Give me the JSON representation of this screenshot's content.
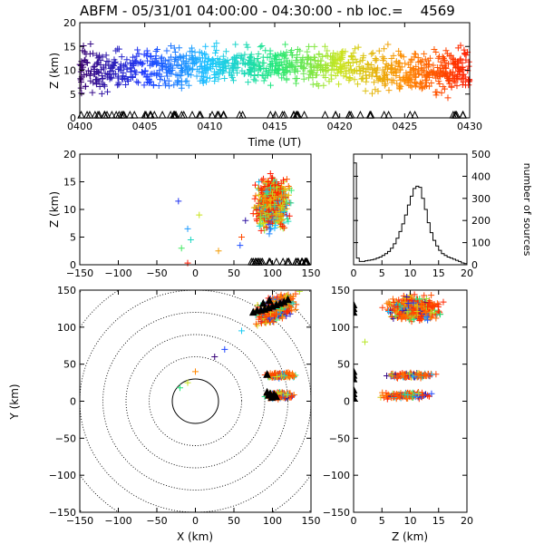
{
  "title": "ABFM - 05/31/01 04:00:00 - 04:30:00 - nb loc.=    4569",
  "colors": {
    "time_scale": [
      "#3b0070",
      "#1f3bff",
      "#1ec8ff",
      "#1ee87a",
      "#c8e61e",
      "#ff8a00",
      "#ff1a00"
    ],
    "station": "#000000",
    "histogram": "#000000"
  },
  "chart_data": [
    {
      "id": "time_height",
      "type": "scatter",
      "xlabel": "Time (UT)",
      "ylabel": "Z (km)",
      "xlim": [
        0,
        30
      ],
      "ylim": [
        0,
        20
      ],
      "x_ticks": [
        0,
        5,
        10,
        15,
        20,
        25,
        30
      ],
      "x_tick_labels": [
        "0400",
        "0405",
        "0410",
        "0415",
        "0420",
        "0425",
        "0430"
      ],
      "y_ticks": [
        0,
        5,
        10,
        15,
        20
      ],
      "y_tick_labels": [
        "0",
        "5",
        "10",
        "15",
        "20"
      ],
      "density_profile": [
        {
          "t": 0,
          "z_center": 10,
          "z_spread": 4.5
        },
        {
          "t": 5,
          "z_center": 10,
          "z_spread": 4
        },
        {
          "t": 10,
          "z_center": 11,
          "z_spread": 3.5
        },
        {
          "t": 15,
          "z_center": 11,
          "z_spread": 3.5
        },
        {
          "t": 20,
          "z_center": 11,
          "z_spread": 4
        },
        {
          "t": 25,
          "z_center": 10,
          "z_spread": 4.5
        },
        {
          "t": 30,
          "z_center": 10,
          "z_spread": 4.5
        }
      ],
      "grid": false
    },
    {
      "id": "x_height",
      "type": "scatter",
      "xlabel": "",
      "ylabel": "Z (km)",
      "xlim": [
        -150,
        150
      ],
      "ylim": [
        0,
        20
      ],
      "x_ticks": [
        -150,
        -100,
        -50,
        0,
        50,
        100,
        150
      ],
      "x_tick_labels": [
        "−150",
        "−100",
        "−50",
        "0",
        "50",
        "100",
        "150"
      ],
      "y_ticks": [
        0,
        5,
        10,
        15,
        20
      ],
      "y_tick_labels": [
        "0",
        "5",
        "10",
        "15",
        "20"
      ],
      "main_cluster": {
        "x_center": 100,
        "x_spread": 18,
        "z_center": 11,
        "z_spread": 4
      },
      "outliers": [
        {
          "x": -22,
          "z": 11.5
        },
        {
          "x": -10,
          "z": 6.5
        },
        {
          "x": -6,
          "z": 4.5
        },
        {
          "x": -18,
          "z": 3
        },
        {
          "x": 5,
          "z": 9
        },
        {
          "x": 30,
          "z": 2.5
        },
        {
          "x": 60,
          "z": 5
        },
        {
          "x": 65,
          "z": 8
        },
        {
          "x": 58,
          "z": 3.5
        }
      ],
      "grid": false
    },
    {
      "id": "height_histogram",
      "type": "histogram",
      "xlabel": "",
      "ylabel": "number of sources",
      "xlim": [
        0,
        20
      ],
      "ylim": [
        0,
        500
      ],
      "x_ticks": [
        0,
        5,
        10,
        15,
        20
      ],
      "x_tick_labels": [
        "0",
        "5",
        "10",
        "15",
        "20"
      ],
      "y_ticks": [
        0,
        100,
        200,
        300,
        400,
        500
      ],
      "y_tick_labels": [
        "0",
        "100",
        "200",
        "300",
        "400",
        "500"
      ],
      "bin_width": 0.5,
      "values": [
        460,
        30,
        15,
        15,
        18,
        20,
        22,
        25,
        30,
        35,
        42,
        50,
        60,
        75,
        95,
        120,
        150,
        185,
        225,
        270,
        310,
        345,
        355,
        350,
        300,
        250,
        190,
        145,
        110,
        85,
        65,
        50,
        42,
        35,
        30,
        25,
        20,
        15,
        8,
        5
      ],
      "grid": false
    },
    {
      "id": "plan_view",
      "type": "scatter",
      "xlabel": "X (km)",
      "ylabel": "Y (km)",
      "xlim": [
        -150,
        150
      ],
      "ylim": [
        -150,
        150
      ],
      "x_ticks": [
        -150,
        -100,
        -50,
        0,
        50,
        100,
        150
      ],
      "x_tick_labels": [
        "−150",
        "−100",
        "−50",
        "0",
        "50",
        "100",
        "150"
      ],
      "y_ticks": [
        -150,
        -100,
        -50,
        0,
        50,
        100,
        150
      ],
      "y_tick_labels": [
        "−150",
        "−100",
        "−50",
        "0",
        "50",
        "100",
        "150"
      ],
      "range_rings_km": [
        30,
        60,
        90,
        120,
        150,
        180,
        210
      ],
      "clusters": [
        {
          "x_center": 105,
          "y_center": 125,
          "x_spread": 22,
          "y_spread": 14,
          "tilt": 0.45
        },
        {
          "x_center": 110,
          "y_center": 35,
          "x_spread": 18,
          "y_spread": 3
        },
        {
          "x_center": 110,
          "y_center": 8,
          "x_spread": 18,
          "y_spread": 4
        }
      ],
      "stations": [
        {
          "x": 75,
          "y": 120
        },
        {
          "x": 80,
          "y": 122
        },
        {
          "x": 85,
          "y": 123
        },
        {
          "x": 90,
          "y": 124
        },
        {
          "x": 95,
          "y": 126
        },
        {
          "x": 100,
          "y": 128
        },
        {
          "x": 105,
          "y": 130
        },
        {
          "x": 110,
          "y": 132
        },
        {
          "x": 115,
          "y": 134
        },
        {
          "x": 120,
          "y": 137
        },
        {
          "x": 88,
          "y": 132
        },
        {
          "x": 96,
          "y": 136
        },
        {
          "x": 93,
          "y": 36
        },
        {
          "x": 93,
          "y": 12
        },
        {
          "x": 95,
          "y": 8
        },
        {
          "x": 97,
          "y": 10
        },
        {
          "x": 99,
          "y": 5
        },
        {
          "x": 102,
          "y": 9
        },
        {
          "x": 105,
          "y": 6
        }
      ],
      "outliers": [
        {
          "x": -20,
          "y": 18
        },
        {
          "x": -10,
          "y": 25
        },
        {
          "x": 0,
          "y": 40
        },
        {
          "x": 25,
          "y": 60
        },
        {
          "x": 38,
          "y": 70
        },
        {
          "x": 60,
          "y": 95
        }
      ],
      "grid": false
    },
    {
      "id": "height_y",
      "type": "scatter",
      "xlabel": "Z (km)",
      "ylabel": "",
      "xlim": [
        0,
        20
      ],
      "ylim": [
        -150,
        150
      ],
      "x_ticks": [
        0,
        5,
        10,
        15,
        20
      ],
      "x_tick_labels": [
        "0",
        "5",
        "10",
        "15",
        "20"
      ],
      "y_ticks": [
        -150,
        -100,
        -50,
        0,
        50,
        100,
        150
      ],
      "y_tick_labels": [
        "−150",
        "−100",
        "−50",
        "0",
        "50",
        "100",
        "150"
      ],
      "clusters": [
        {
          "z_center": 10.5,
          "y_center": 125,
          "z_spread": 4,
          "y_spread": 14
        },
        {
          "z_center": 10,
          "y_center": 35,
          "z_spread": 4,
          "y_spread": 3
        },
        {
          "z_center": 9.5,
          "y_center": 8,
          "z_spread": 4,
          "y_spread": 4
        }
      ],
      "stations": [
        {
          "z": 0,
          "y": 125
        },
        {
          "z": 0,
          "y": 35
        },
        {
          "z": 0,
          "y": 10
        }
      ],
      "grid": false
    }
  ]
}
